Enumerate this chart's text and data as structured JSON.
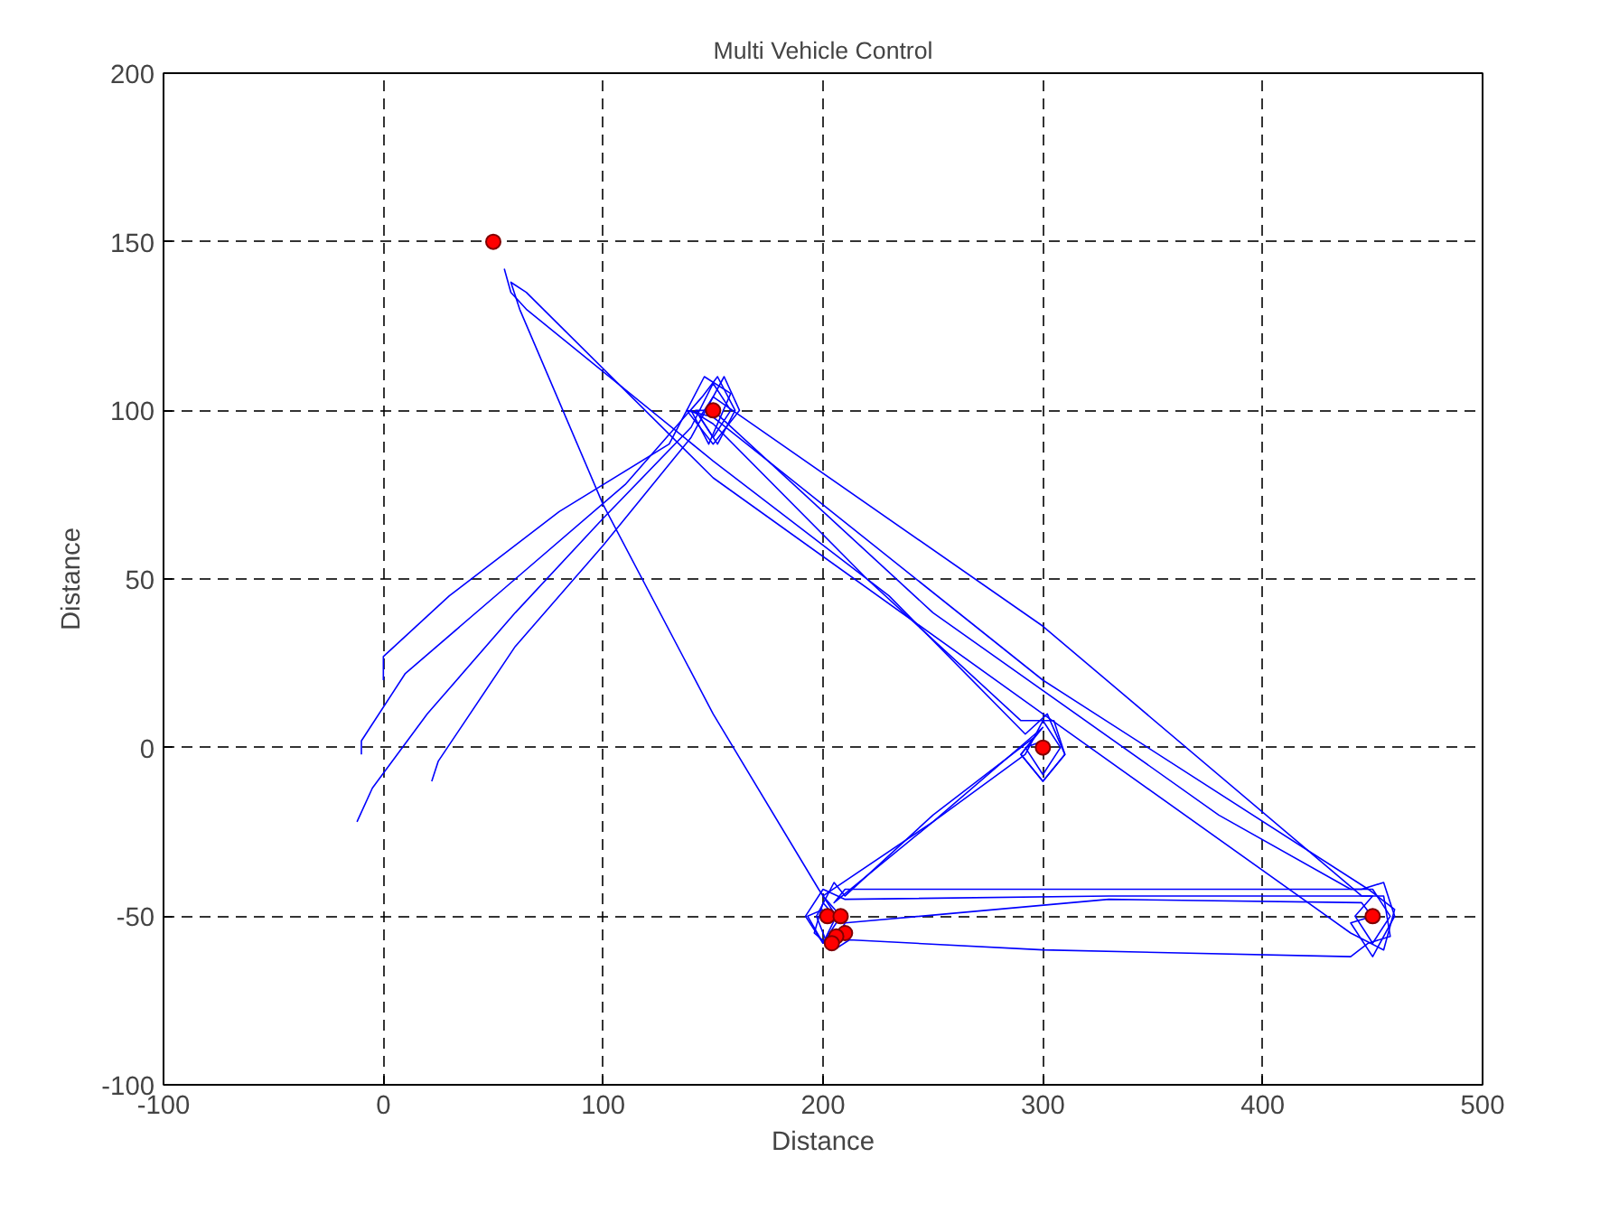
{
  "chart_data": {
    "type": "line",
    "title": "Multi Vehicle Control",
    "xlabel": "Distance",
    "ylabel": "Distance",
    "xlim": [
      -100,
      500
    ],
    "ylim": [
      -100,
      200
    ],
    "xticks": [
      -100,
      0,
      100,
      200,
      300,
      400,
      500
    ],
    "yticks": [
      -100,
      -50,
      0,
      50,
      100,
      150,
      200
    ],
    "grid": true,
    "line_style": "solid",
    "series": [
      {
        "color": "#0000ff",
        "x": [
          -12,
          -5,
          20,
          60,
          100,
          140,
          150,
          158,
          150,
          142,
          150,
          250,
          380,
          440,
          450,
          458,
          450,
          442,
          450,
          330,
          210,
          200,
          192,
          200,
          208,
          200,
          250,
          292,
          300,
          308,
          300,
          292,
          300
        ],
        "values": [
          -22,
          -12,
          10,
          40,
          68,
          95,
          108,
          100,
          92,
          100,
          100,
          40,
          -20,
          -42,
          -42,
          -50,
          -58,
          -50,
          -44,
          -44,
          -45,
          -42,
          -50,
          -58,
          -50,
          -44,
          -22,
          -2,
          8,
          0,
          -8,
          0,
          2
        ]
      },
      {
        "color": "#0000ff",
        "x": [
          -10,
          -10,
          10,
          60,
          110,
          145,
          152,
          160,
          152,
          144,
          150,
          300,
          445,
          455,
          458,
          448,
          440,
          300,
          212,
          205,
          196,
          200,
          208,
          200
        ],
        "values": [
          -2,
          2,
          22,
          50,
          78,
          104,
          110,
          100,
          90,
          98,
          104,
          36,
          -44,
          -44,
          -56,
          -58,
          -62,
          -60,
          -57,
          -60,
          -55,
          -46,
          -52,
          -50
        ]
      },
      {
        "color": "#0000ff",
        "x": [
          22,
          25,
          60,
          100,
          140,
          155,
          162,
          150,
          138,
          150,
          300,
          448,
          460,
          455,
          440,
          300,
          150,
          65,
          58,
          62,
          100,
          150,
          198,
          206,
          200,
          193,
          200
        ],
        "values": [
          -10,
          -4,
          30,
          60,
          92,
          110,
          100,
          90,
          100,
          98,
          20,
          -42,
          -48,
          -60,
          -55,
          10,
          80,
          135,
          138,
          130,
          72,
          10,
          -42,
          -50,
          -58,
          -50,
          -48
        ]
      },
      {
        "color": "#0000ff",
        "x": [
          0,
          0,
          30,
          80,
          130,
          146,
          158,
          148,
          140,
          150,
          220,
          290,
          305,
          310,
          300,
          290,
          300,
          250,
          205,
          210,
          330,
          445,
          455,
          460,
          450,
          440,
          450
        ],
        "values": [
          20,
          27,
          45,
          70,
          90,
          110,
          105,
          90,
          100,
          96,
          50,
          8,
          8,
          -2,
          -10,
          -2,
          6,
          -22,
          -46,
          -42,
          -42,
          -42,
          -40,
          -50,
          -62,
          -52,
          -50
        ]
      },
      {
        "color": "#0000ff",
        "x": [
          55,
          58,
          65,
          150,
          230,
          292,
          302,
          310,
          300,
          290,
          296,
          250,
          210,
          205,
          197,
          203,
          210,
          330,
          445,
          452
        ],
        "values": [
          142,
          135,
          130,
          85,
          45,
          4,
          10,
          -2,
          -10,
          -2,
          3,
          -20,
          -44,
          -40,
          -50,
          -60,
          -52,
          -45,
          -46,
          -52
        ]
      },
      {
        "type": "scatter",
        "color": "#ff0000",
        "marker": "circle",
        "x": [
          50,
          150,
          300,
          450,
          202,
          208,
          210,
          206,
          204
        ],
        "values": [
          150,
          100,
          0,
          -50,
          -50,
          -50,
          -55,
          -56,
          -58
        ]
      }
    ]
  }
}
